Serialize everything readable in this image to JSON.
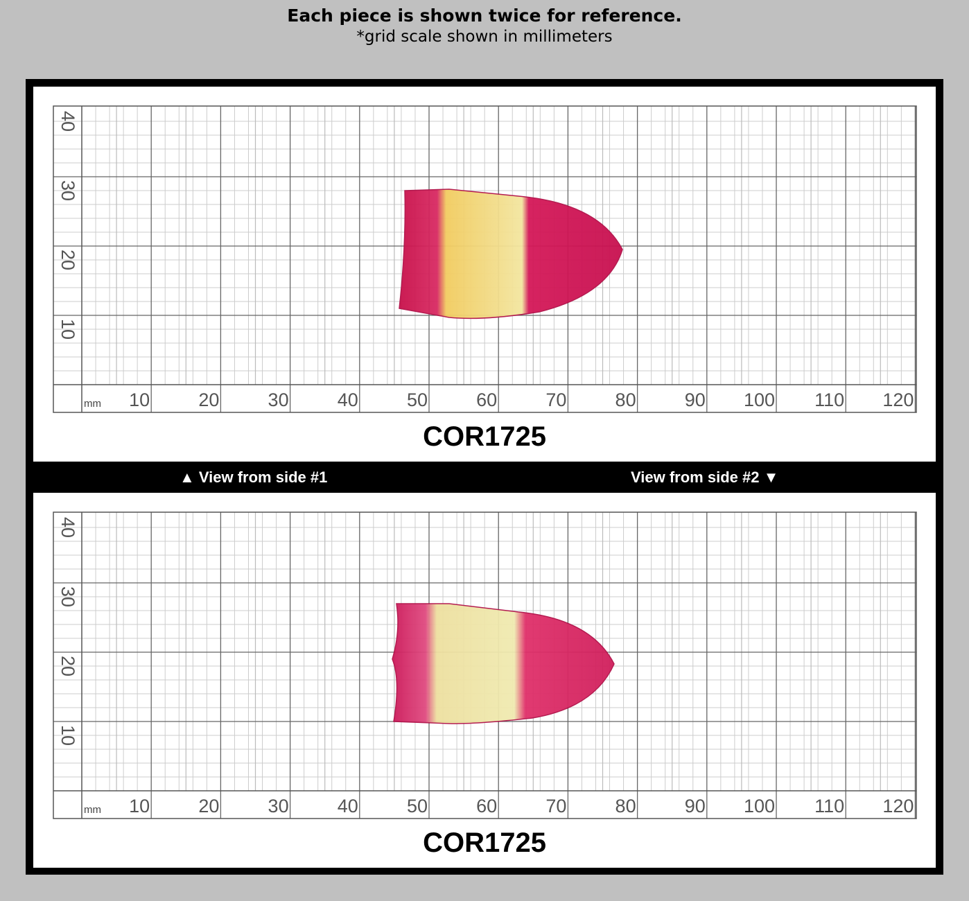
{
  "header": {
    "title": "Each piece is shown twice for reference.",
    "subtitle": "*grid scale shown in millimeters"
  },
  "panels": [
    {
      "unit": "mm",
      "x_labels": [
        10,
        20,
        30,
        40,
        50,
        60,
        70,
        80,
        90,
        100,
        110,
        120
      ],
      "y_labels": [
        10,
        20,
        30,
        40
      ],
      "code": "COR1725"
    },
    {
      "unit": "mm",
      "x_labels": [
        10,
        20,
        30,
        40,
        50,
        60,
        70,
        80,
        90,
        100,
        110,
        120
      ],
      "y_labels": [
        10,
        20,
        30,
        40
      ],
      "code": "COR1725"
    }
  ],
  "side_labels": [
    "▲ View from side #1",
    "View from side #2 ▼"
  ]
}
